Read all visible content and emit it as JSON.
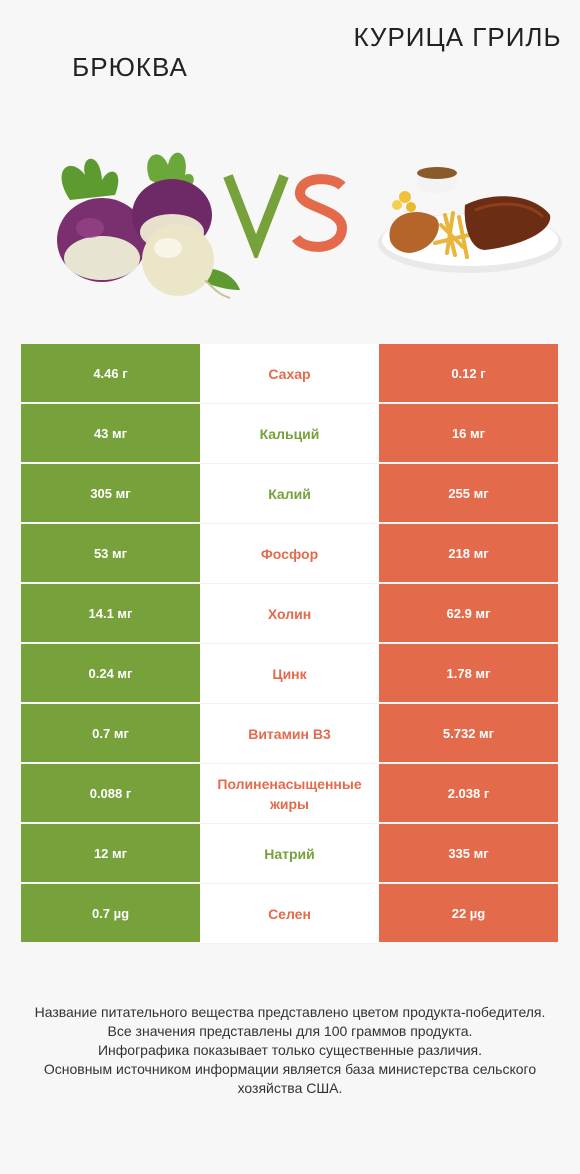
{
  "header": {
    "left_title": "БРЮКВА",
    "right_title": "КУРИЦА ГРИЛЬ",
    "vs_label": "VS"
  },
  "colors": {
    "left_product": "#76a13b",
    "right_product": "#e36a4b"
  },
  "rows": [
    {
      "nutrient": "Сахар",
      "left": "4.46 г",
      "right": "0.12 г",
      "winner": "right"
    },
    {
      "nutrient": "Кальций",
      "left": "43 мг",
      "right": "16 мг",
      "winner": "left"
    },
    {
      "nutrient": "Калий",
      "left": "305 мг",
      "right": "255 мг",
      "winner": "left"
    },
    {
      "nutrient": "Фосфор",
      "left": "53 мг",
      "right": "218 мг",
      "winner": "right"
    },
    {
      "nutrient": "Холин",
      "left": "14.1 мг",
      "right": "62.9 мг",
      "winner": "right"
    },
    {
      "nutrient": "Цинк",
      "left": "0.24 мг",
      "right": "1.78 мг",
      "winner": "right"
    },
    {
      "nutrient": "Витамин B3",
      "left": "0.7 мг",
      "right": "5.732 мг",
      "winner": "right"
    },
    {
      "nutrient": "Полиненасыщенные жиры",
      "left": "0.088 г",
      "right": "2.038 г",
      "winner": "right"
    },
    {
      "nutrient": "Натрий",
      "left": "12 мг",
      "right": "335 мг",
      "winner": "left"
    },
    {
      "nutrient": "Селен",
      "left": "0.7 µg",
      "right": "22 µg",
      "winner": "right"
    }
  ],
  "footer": {
    "line1": "Название питательного вещества представлено цветом продукта-победителя.",
    "line2": "Все значения представлены для 100 граммов продукта.",
    "line3": "Инфографика показывает только существенные различия.",
    "line4": "Основным источником информации является база министерства сельского хозяйства США."
  }
}
